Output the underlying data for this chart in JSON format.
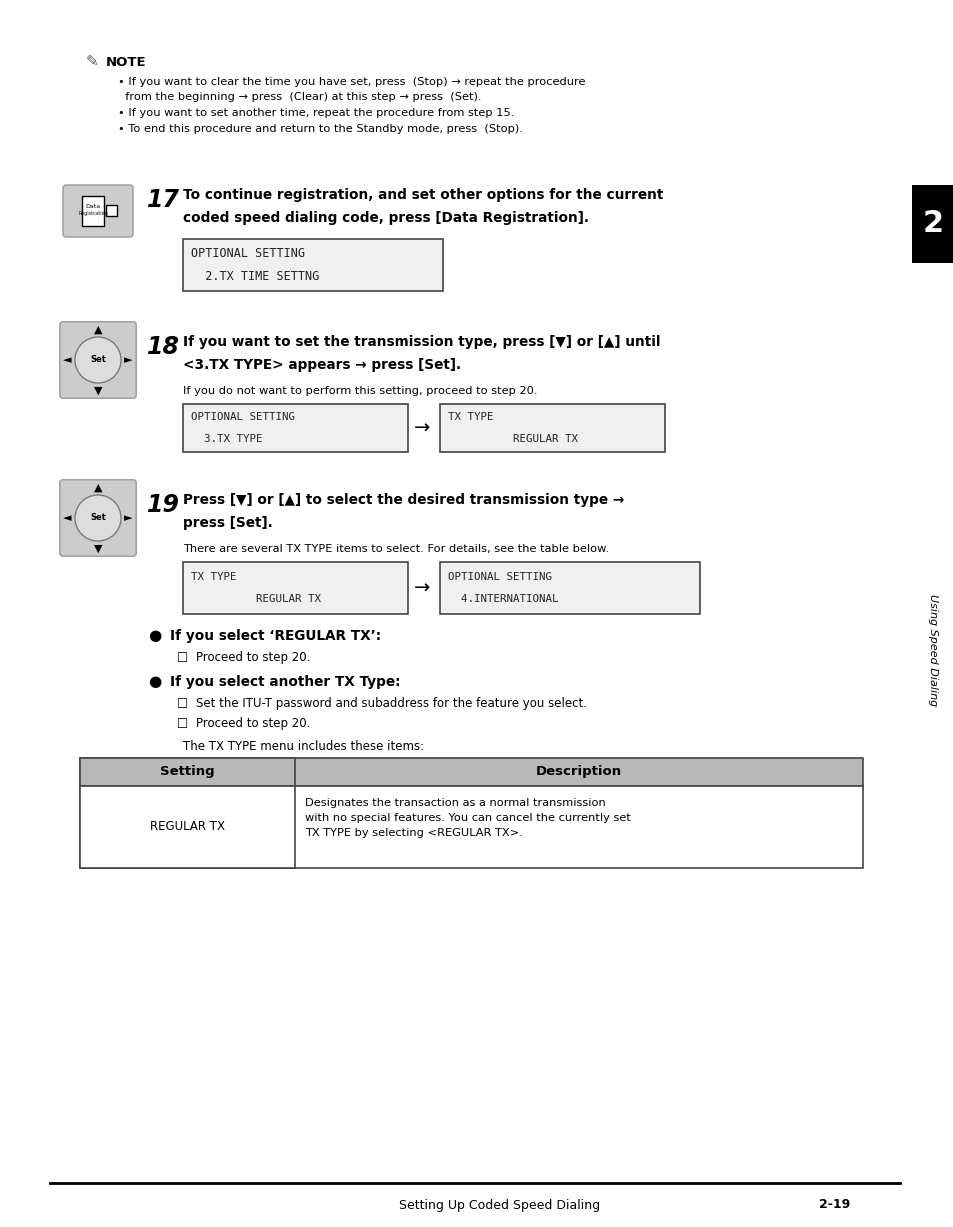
{
  "page_bg": "#ffffff",
  "sidebar_text": "Using Speed Dialing",
  "sidebar_number": "2",
  "footer_text": "Setting Up Coded Speed Dialing",
  "footer_page": "2-19",
  "step17_lcd_line1": "OPTIONAL SETTING",
  "step17_lcd_line2": "  2.TX TIME SETTNG",
  "step18_lcd1_line1": "OPTIONAL SETTING",
  "step18_lcd1_line2": "  3.TX TYPE",
  "step18_lcd2_line1": "TX TYPE",
  "step18_lcd2_line2": "          REGULAR TX",
  "step18_subtext": "If you do not want to perform this setting, proceed to step 20.",
  "step19_lcd1_line1": "TX TYPE",
  "step19_lcd1_line2": "          REGULAR TX",
  "step19_lcd2_line1": "OPTIONAL SETTING",
  "step19_lcd2_line2": "  4.INTERNATIONAL",
  "step19_subtext": "There are several TX TYPE items to select. For details, see the table below.",
  "lcd_bg": "#f0f0f0",
  "lcd_border": "#444444",
  "lcd_font_color": "#222222",
  "table_header_bg": "#b8b8b8",
  "table_border_color": "#444444"
}
